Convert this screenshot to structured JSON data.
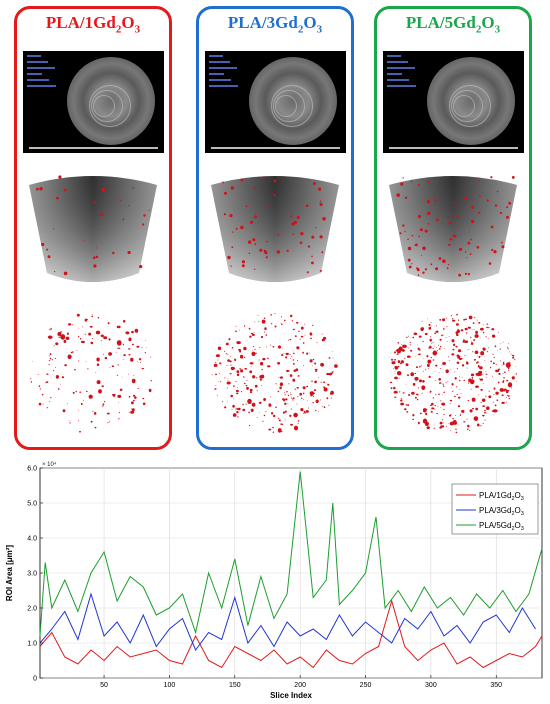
{
  "panels": [
    {
      "id": "1",
      "color": "#e3191c",
      "title_base": "PLA/1Gd",
      "title_sub1": "2",
      "title_mid": "O",
      "title_sub2": "3",
      "density": 70
    },
    {
      "id": "3",
      "color": "#1f6fd1",
      "title_base": "PLA/3Gd",
      "title_sub1": "2",
      "title_mid": "O",
      "title_sub2": "3",
      "density": 130
    },
    {
      "id": "5",
      "color": "#1aa64a",
      "title_base": "PLA/5Gd",
      "title_sub1": "2",
      "title_mid": "O",
      "title_sub2": "3",
      "density": 190
    }
  ],
  "chart_data": {
    "type": "line",
    "xlabel": "Slice Index",
    "ylabel": "ROI Area [μm²]",
    "y_multiplier": "× 10⁴",
    "xlim": [
      1,
      385
    ],
    "ylim": [
      0,
      6.0
    ],
    "xticks": [
      50,
      100,
      150,
      200,
      250,
      300,
      350
    ],
    "yticks": [
      0,
      1.0,
      2.0,
      3.0,
      4.0,
      5.0,
      6.0
    ],
    "ytick_labels": [
      "0",
      "1.0",
      "2.0",
      "3.0",
      "4.0",
      "5.0",
      "6.0"
    ],
    "grid": true,
    "legend_position": "top-right",
    "series": [
      {
        "name": "PLA/1Gd2O3",
        "label_base": "PLA/1Gd",
        "color": "#e3191c",
        "x": [
          1,
          10,
          20,
          30,
          40,
          50,
          60,
          70,
          80,
          90,
          100,
          110,
          120,
          130,
          140,
          150,
          160,
          170,
          180,
          190,
          200,
          210,
          220,
          230,
          240,
          250,
          260,
          270,
          280,
          290,
          300,
          310,
          320,
          330,
          340,
          350,
          360,
          370,
          380,
          385
        ],
        "y": [
          0.9,
          1.3,
          0.6,
          0.4,
          0.8,
          0.5,
          0.9,
          0.6,
          0.7,
          0.8,
          0.5,
          0.4,
          1.2,
          0.5,
          0.3,
          0.9,
          0.7,
          0.5,
          0.8,
          0.4,
          0.6,
          0.3,
          0.8,
          0.5,
          0.4,
          0.7,
          0.9,
          2.2,
          0.9,
          0.5,
          0.8,
          1.0,
          0.4,
          0.6,
          0.3,
          0.5,
          0.7,
          0.6,
          0.9,
          1.2
        ]
      },
      {
        "name": "PLA/3Gd2O3",
        "label_base": "PLA/3Gd",
        "color": "#1f35d6",
        "x": [
          1,
          10,
          20,
          30,
          40,
          50,
          60,
          70,
          80,
          90,
          100,
          110,
          120,
          130,
          140,
          150,
          160,
          170,
          180,
          190,
          200,
          210,
          220,
          230,
          240,
          250,
          260,
          270,
          280,
          290,
          300,
          310,
          320,
          330,
          340,
          350,
          360,
          370,
          380
        ],
        "y": [
          1.0,
          1.4,
          1.9,
          1.1,
          2.4,
          1.2,
          1.6,
          1.0,
          1.8,
          0.9,
          1.4,
          1.7,
          0.8,
          1.3,
          1.1,
          2.3,
          1.0,
          1.5,
          0.9,
          1.6,
          1.2,
          1.4,
          1.1,
          1.8,
          1.2,
          1.6,
          1.3,
          1.0,
          1.7,
          1.4,
          1.9,
          1.2,
          1.5,
          1.0,
          1.6,
          1.8,
          1.3,
          2.0,
          1.4
        ]
      },
      {
        "name": "PLA/5Gd2O3",
        "label_base": "PLA/5Gd",
        "color": "#1c9e2e",
        "x": [
          1,
          5,
          10,
          20,
          30,
          40,
          50,
          60,
          70,
          80,
          90,
          100,
          110,
          120,
          130,
          140,
          150,
          160,
          170,
          180,
          190,
          200,
          210,
          220,
          225,
          230,
          240,
          250,
          258,
          265,
          275,
          285,
          295,
          305,
          315,
          325,
          335,
          345,
          355,
          365,
          375,
          385
        ],
        "y": [
          1.2,
          3.3,
          2.0,
          2.8,
          1.9,
          3.0,
          3.6,
          2.2,
          2.9,
          2.6,
          1.8,
          2.0,
          2.4,
          1.3,
          3.0,
          2.0,
          3.4,
          1.5,
          2.9,
          1.7,
          2.4,
          5.9,
          2.3,
          2.8,
          5.0,
          2.1,
          2.5,
          3.0,
          4.6,
          2.0,
          2.5,
          1.9,
          2.6,
          2.0,
          2.3,
          1.8,
          2.4,
          2.0,
          2.5,
          1.9,
          2.4,
          3.7
        ]
      }
    ]
  }
}
